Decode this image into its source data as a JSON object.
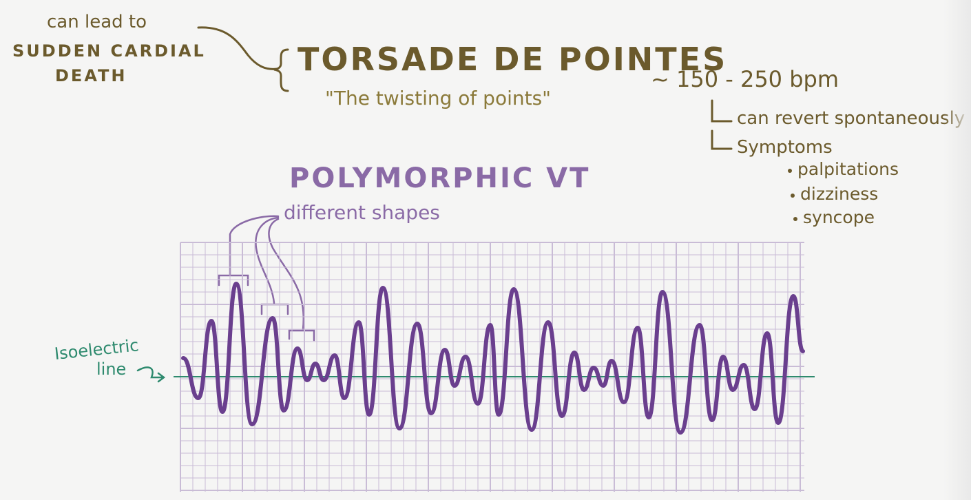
{
  "title": "TORSADE DE POINTES",
  "subtitle": "\"The twisting of points\"",
  "left_note": {
    "line1": "can lead to",
    "line2": "SUDDEN CARDIAL",
    "line3": "DEATH"
  },
  "rate": "~ 150 - 250 bpm",
  "rate_notes": [
    "can revert spontaneously",
    "Symptoms"
  ],
  "symptoms": [
    "palpitations",
    "dizziness",
    "syncope"
  ],
  "ecg_section": {
    "heading": "POLYMORPHIC VT",
    "subheading": "different shapes",
    "isoelectric_label_line1": "Isoelectric",
    "isoelectric_label_line2": "line"
  },
  "colors": {
    "brown": "#6b5a2c",
    "purple": "#6a3f8e",
    "grid": "#c9bcd6",
    "isoelectric": "#2e8a6e"
  }
}
